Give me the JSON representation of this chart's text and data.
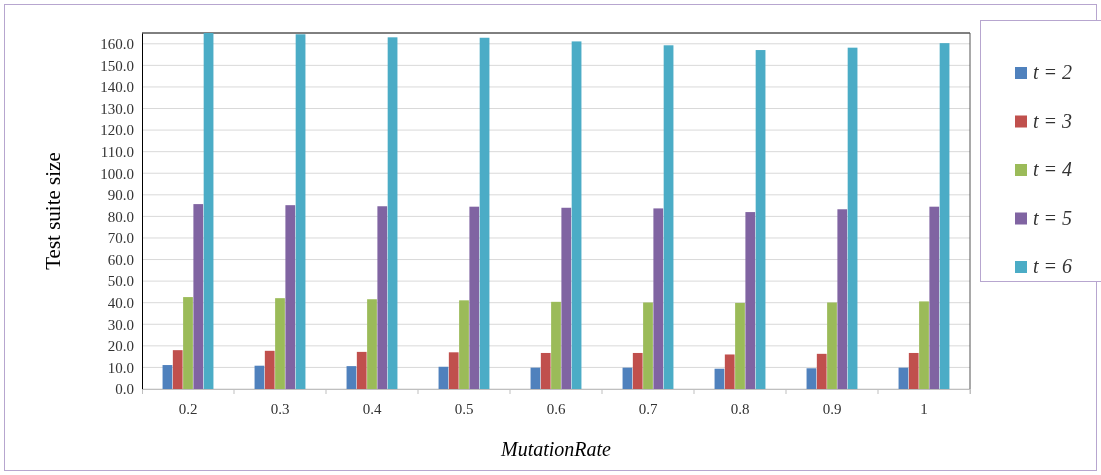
{
  "chart_data": {
    "type": "bar",
    "xlabel": "MutationRate",
    "ylabel": "Test suite size",
    "categories": [
      "0.2",
      "0.3",
      "0.4",
      "0.5",
      "0.6",
      "0.7",
      "0.8",
      "0.9",
      "1"
    ],
    "series": [
      {
        "name": "t = 2",
        "color": "#4f81bd",
        "values": [
          11.1,
          10.8,
          10.6,
          10.3,
          9.9,
          9.9,
          9.4,
          9.6,
          9.9
        ]
      },
      {
        "name": "t = 3",
        "color": "#c0504d",
        "values": [
          18.0,
          17.7,
          17.2,
          17.0,
          16.7,
          16.7,
          16.0,
          16.3,
          16.7
        ]
      },
      {
        "name": "t = 4",
        "color": "#9bbb59",
        "values": [
          42.6,
          42.1,
          41.6,
          41.1,
          40.4,
          40.1,
          39.9,
          40.1,
          40.6
        ]
      },
      {
        "name": "t = 5",
        "color": "#8064a2",
        "values": [
          85.7,
          85.2,
          84.7,
          84.5,
          84.0,
          83.7,
          82.0,
          83.3,
          84.5
        ]
      },
      {
        "name": "t = 6",
        "color": "#4bacc6",
        "values": [
          165,
          164.4,
          163.0,
          162.8,
          161.1,
          159.3,
          157.1,
          158.2,
          160.3
        ]
      }
    ],
    "ylim": [
      0,
      165
    ],
    "yticks": [
      {
        "value": 0,
        "label": "0.0"
      },
      {
        "value": 10,
        "label": "10.0"
      },
      {
        "value": 20,
        "label": "20.0"
      },
      {
        "value": 30,
        "label": "30.0"
      },
      {
        "value": 40,
        "label": "40.0"
      },
      {
        "value": 50,
        "label": "50.0"
      },
      {
        "value": 60,
        "label": "60.0"
      },
      {
        "value": 70,
        "label": "70.0"
      },
      {
        "value": 80,
        "label": "80.0"
      },
      {
        "value": 90,
        "label": "90.0"
      },
      {
        "value": 100,
        "label": "100.0"
      },
      {
        "value": 110,
        "label": "110.0"
      },
      {
        "value": 120,
        "label": "120.0"
      },
      {
        "value": 130,
        "label": "130.0"
      },
      {
        "value": 140,
        "label": "140.0"
      },
      {
        "value": 150,
        "label": "150.0"
      },
      {
        "value": 160,
        "label": "160.0"
      }
    ],
    "grid": "y",
    "legend": "right"
  }
}
